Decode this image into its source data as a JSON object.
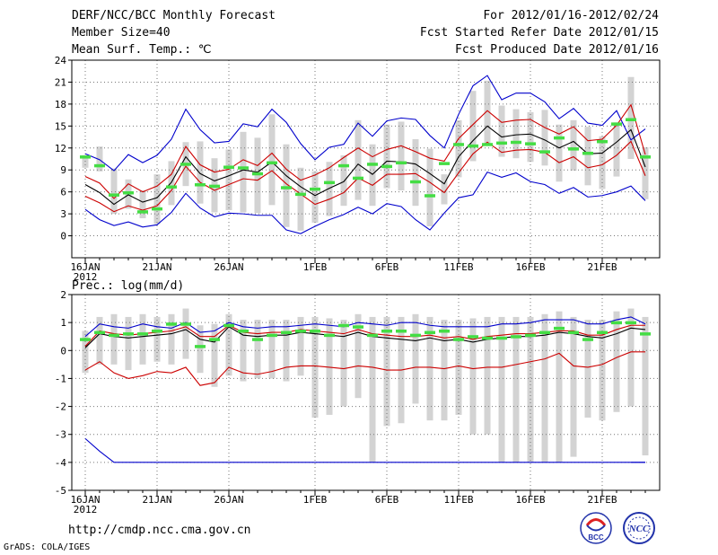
{
  "header": {
    "title": "DERF/NCC/BCC Monthly Forecast",
    "member_size": "Member Size=40",
    "variable": "Mean Surf. Temp.: ℃",
    "forecast_period": "For 2012/01/16-2012/02/24",
    "started_refer": "Fcst Started Refer Date 2012/01/15",
    "produced": "Fcst Produced Date 2012/01/16"
  },
  "footer": {
    "url": "http://cmdp.ncc.cma.gov.cn",
    "grads": "GrADS: COLA/IGES",
    "logo_left": "BCC",
    "logo_right": "NCC"
  },
  "colors": {
    "max": "#0000cc",
    "spread": "#cc0000",
    "mean": "#000000",
    "box": "#d3d3d3",
    "clim": "#44dd44",
    "grid": "#777777"
  },
  "chart_data": [
    {
      "type": "line",
      "title": "Mean Surf. Temp.: ℃",
      "x_start": "2012-01-16",
      "days": 40,
      "x_ticks": [
        {
          "day": 0,
          "label": "16JAN"
        },
        {
          "day": 5,
          "label": "21JAN"
        },
        {
          "day": 10,
          "label": "26JAN"
        },
        {
          "day": 16,
          "label": "1FEB"
        },
        {
          "day": 21,
          "label": "6FEB"
        },
        {
          "day": 26,
          "label": "11FEB"
        },
        {
          "day": 31,
          "label": "16FEB"
        },
        {
          "day": 36,
          "label": "21FEB"
        }
      ],
      "year_label": "2012",
      "ylim": [
        -3,
        24
      ],
      "yticks": [
        0,
        3,
        6,
        9,
        12,
        15,
        18,
        21,
        24
      ],
      "series": [
        {
          "name": "max",
          "color": "#0000cc",
          "values": [
            11.2,
            10.4,
            8.9,
            11.1,
            10.0,
            11.0,
            13.2,
            17.3,
            14.5,
            12.7,
            12.9,
            15.3,
            14.9,
            17.3,
            15.5,
            12.6,
            10.4,
            12.1,
            12.5,
            15.4,
            13.6,
            15.7,
            16.1,
            15.9,
            13.7,
            12.0,
            16.6,
            20.5,
            21.9,
            18.6,
            19.5,
            19.5,
            18.3,
            16.0,
            17.4,
            15.4,
            15.1,
            17.1,
            13.1,
            14.6
          ]
        },
        {
          "name": "upper",
          "color": "#cc0000",
          "values": [
            8.1,
            7.2,
            5.1,
            7.1,
            6.0,
            6.8,
            8.4,
            12.2,
            9.7,
            8.7,
            9.1,
            10.4,
            9.6,
            11.3,
            9.1,
            7.6,
            8.3,
            9.3,
            10.7,
            12.0,
            10.8,
            11.8,
            12.3,
            11.5,
            10.6,
            10.2,
            13.3,
            15.2,
            17.1,
            15.5,
            15.8,
            15.9,
            14.8,
            13.9,
            14.9,
            13.0,
            13.2,
            15.1,
            17.9,
            11.1
          ]
        },
        {
          "name": "mean",
          "color": "#000000",
          "values": [
            7.0,
            5.9,
            4.3,
            5.6,
            4.6,
            5.2,
            7.3,
            10.8,
            8.5,
            7.5,
            8.2,
            9.0,
            8.7,
            10.1,
            8.2,
            6.7,
            5.5,
            6.5,
            7.4,
            9.8,
            8.4,
            10.2,
            10.1,
            9.8,
            8.5,
            7.1,
            10.8,
            13.0,
            15.0,
            13.5,
            13.8,
            13.9,
            13.1,
            12.0,
            12.9,
            11.2,
            11.3,
            12.8,
            14.5,
            9.4
          ]
        },
        {
          "name": "lower",
          "color": "#cc0000",
          "values": [
            5.4,
            4.5,
            3.3,
            4.1,
            3.5,
            4.1,
            6.2,
            9.5,
            7.3,
            6.2,
            7.0,
            7.8,
            7.6,
            8.9,
            7.1,
            5.7,
            4.3,
            5.0,
            5.9,
            7.9,
            6.9,
            8.4,
            8.4,
            8.5,
            7.3,
            5.9,
            8.6,
            11.2,
            12.8,
            11.4,
            11.7,
            11.8,
            11.4,
            10.0,
            10.8,
            9.3,
            9.7,
            11.0,
            12.9,
            8.2
          ]
        },
        {
          "name": "min",
          "color": "#0000cc",
          "values": [
            3.6,
            2.2,
            1.4,
            1.9,
            1.2,
            1.5,
            3.2,
            5.8,
            3.8,
            2.6,
            3.1,
            3.0,
            2.8,
            2.8,
            0.8,
            0.3,
            1.3,
            2.2,
            2.9,
            3.9,
            3.0,
            4.4,
            4.0,
            2.2,
            0.8,
            3.1,
            5.2,
            5.6,
            8.7,
            8.0,
            8.6,
            7.4,
            7.0,
            5.8,
            6.6,
            5.3,
            5.5,
            6.0,
            6.8,
            4.8
          ]
        }
      ],
      "boxes": {
        "low": [
          9.3,
          8.8,
          3.0,
          3.7,
          2.4,
          1.6,
          4.2,
          6.8,
          4.4,
          3.2,
          3.5,
          3.2,
          3.1,
          4.2,
          1.2,
          0.7,
          1.8,
          2.7,
          4.1,
          4.9,
          4.1,
          6.5,
          6.2,
          4.1,
          1.3,
          4.3,
          8.0,
          10.2,
          12.3,
          10.8,
          10.6,
          10.1,
          9.6,
          7.4,
          8.9,
          6.9,
          6.4,
          8.1,
          10.5,
          5.0
        ],
        "high": [
          11.0,
          12.2,
          9.2,
          7.7,
          6.2,
          8.4,
          10.2,
          12.8,
          12.9,
          10.6,
          11.8,
          14.2,
          13.4,
          16.6,
          12.5,
          9.3,
          8.8,
          10.1,
          11.0,
          15.8,
          12.5,
          15.2,
          15.6,
          13.2,
          11.9,
          8.4,
          15.8,
          19.8,
          21.2,
          17.8,
          17.3,
          16.9,
          17.2,
          15.2,
          15.8,
          14.9,
          13.6,
          15.5,
          21.7,
          12.1
        ]
      },
      "clim": [
        10.8,
        9.6,
        5.6,
        5.9,
        3.3,
        3.7,
        6.7,
        9.8,
        7.0,
        6.8,
        9.4,
        9.3,
        8.5,
        10.0,
        6.6,
        5.7,
        6.4,
        7.3,
        9.6,
        7.9,
        9.8,
        9.5,
        10.0,
        7.4,
        5.5,
        9.9,
        12.5,
        12.3,
        12.5,
        12.7,
        12.8,
        12.6,
        11.5,
        13.4,
        11.9,
        11.3,
        12.9,
        15.3,
        15.9,
        10.8
      ]
    },
    {
      "type": "line",
      "title": "Prec.: log(mm/d)",
      "x_start": "2012-01-16",
      "days": 40,
      "x_ticks": [
        {
          "day": 0,
          "label": "16JAN"
        },
        {
          "day": 5,
          "label": "21JAN"
        },
        {
          "day": 10,
          "label": "26JAN"
        },
        {
          "day": 16,
          "label": "1FEB"
        },
        {
          "day": 21,
          "label": "6FEB"
        },
        {
          "day": 26,
          "label": "11FEB"
        },
        {
          "day": 31,
          "label": "16FEB"
        },
        {
          "day": 36,
          "label": "21FEB"
        }
      ],
      "year_label": "2012",
      "ylim": [
        -5,
        2
      ],
      "yticks": [
        -5,
        -4,
        -3,
        -2,
        -1,
        0,
        1,
        2
      ],
      "series": [
        {
          "name": "max",
          "color": "#0000cc",
          "values": [
            0.5,
            0.95,
            0.85,
            0.8,
            0.95,
            0.85,
            0.8,
            1.0,
            0.65,
            0.7,
            1.0,
            0.85,
            0.8,
            0.85,
            0.85,
            0.9,
            0.95,
            0.9,
            0.85,
            1.0,
            0.95,
            0.9,
            1.0,
            1.0,
            0.9,
            0.85,
            0.85,
            0.85,
            0.85,
            0.95,
            0.95,
            1.0,
            1.1,
            1.1,
            1.1,
            0.95,
            0.95,
            1.1,
            1.2,
            0.95
          ]
        },
        {
          "name": "upper",
          "color": "#cc0000",
          "values": [
            0.15,
            0.7,
            0.6,
            0.55,
            0.6,
            0.65,
            0.7,
            0.85,
            0.5,
            0.5,
            0.9,
            0.65,
            0.6,
            0.65,
            0.65,
            0.75,
            0.7,
            0.65,
            0.6,
            0.75,
            0.6,
            0.55,
            0.5,
            0.5,
            0.55,
            0.45,
            0.5,
            0.4,
            0.5,
            0.55,
            0.6,
            0.6,
            0.65,
            0.7,
            0.7,
            0.55,
            0.55,
            0.75,
            0.9,
            0.9
          ]
        },
        {
          "name": "mean",
          "color": "#000000",
          "values": [
            0.1,
            0.6,
            0.5,
            0.45,
            0.5,
            0.55,
            0.6,
            0.75,
            0.4,
            0.3,
            0.85,
            0.55,
            0.5,
            0.55,
            0.55,
            0.65,
            0.6,
            0.55,
            0.5,
            0.65,
            0.5,
            0.45,
            0.4,
            0.35,
            0.45,
            0.35,
            0.4,
            0.3,
            0.4,
            0.45,
            0.5,
            0.5,
            0.55,
            0.65,
            0.6,
            0.5,
            0.45,
            0.6,
            0.8,
            0.75
          ]
        },
        {
          "name": "lower",
          "color": "#cc0000",
          "values": [
            -0.7,
            -0.4,
            -0.8,
            -1.0,
            -0.9,
            -0.75,
            -0.8,
            -0.6,
            -1.25,
            -1.15,
            -0.6,
            -0.8,
            -0.85,
            -0.75,
            -0.6,
            -0.55,
            -0.55,
            -0.6,
            -0.65,
            -0.55,
            -0.6,
            -0.7,
            -0.7,
            -0.6,
            -0.6,
            -0.65,
            -0.55,
            -0.65,
            -0.6,
            -0.6,
            -0.5,
            -0.4,
            -0.3,
            -0.1,
            -0.55,
            -0.6,
            -0.5,
            -0.25,
            -0.05,
            -0.05
          ]
        },
        {
          "name": "min",
          "color": "#0000cc",
          "values": [
            -3.15,
            -3.6,
            -4.0,
            -4.0,
            -4.0,
            -4.0,
            -4.0,
            -4.0,
            -4.0,
            -4.0,
            -4.0,
            -4.0,
            -4.0,
            -4.0,
            -4.0,
            -4.0,
            -4.0,
            -4.0,
            -4.0,
            -4.0,
            -4.0,
            -4.0,
            -4.0,
            -4.0,
            -4.0,
            -4.0,
            -4.0,
            -4.0,
            -4.0,
            -4.0,
            -4.0,
            -4.0,
            -4.0,
            -4.0,
            -4.0,
            -4.0,
            -4.0,
            -4.0,
            -4.0,
            -4.0
          ]
        },
        {
          "name": "min_last",
          "color": "#0000cc",
          "values": [
            -4.0,
            -4.0
          ]
        }
      ],
      "boxes": {
        "low": [
          -0.8,
          -0.5,
          -0.5,
          -0.7,
          -0.5,
          -0.4,
          -0.5,
          -0.3,
          -0.8,
          -1.3,
          -0.9,
          -1.1,
          -1.0,
          -1.0,
          -1.1,
          -0.9,
          -2.4,
          -2.3,
          -2.0,
          -1.7,
          -4.0,
          -2.7,
          -2.6,
          -1.9,
          -2.5,
          -2.5,
          -2.3,
          -3.0,
          -3.0,
          -4.0,
          -4.0,
          -4.0,
          -4.0,
          -4.0,
          -3.8,
          -2.4,
          -2.5,
          -2.2,
          -2.0,
          -3.75
        ],
        "high": [
          0.7,
          1.2,
          1.3,
          1.2,
          1.3,
          1.2,
          1.3,
          1.5,
          0.9,
          0.95,
          1.3,
          1.1,
          1.1,
          1.1,
          1.1,
          1.2,
          1.2,
          1.15,
          1.1,
          1.3,
          1.2,
          1.2,
          1.2,
          1.3,
          1.2,
          1.1,
          1.1,
          1.15,
          1.2,
          1.2,
          1.2,
          1.2,
          1.3,
          1.4,
          1.2,
          1.1,
          1.1,
          1.4,
          1.5,
          1.2
        ]
      },
      "clim": [
        0.4,
        0.65,
        0.55,
        0.6,
        0.6,
        0.7,
        0.95,
        0.95,
        0.15,
        0.4,
        0.9,
        0.7,
        0.4,
        0.55,
        0.65,
        0.7,
        0.7,
        0.55,
        0.9,
        0.85,
        0.55,
        0.7,
        0.7,
        0.55,
        0.65,
        0.7,
        0.4,
        0.5,
        0.45,
        0.45,
        0.5,
        0.55,
        0.65,
        0.8,
        0.65,
        0.4,
        0.65,
        1.0,
        1.0,
        0.6
      ]
    }
  ]
}
